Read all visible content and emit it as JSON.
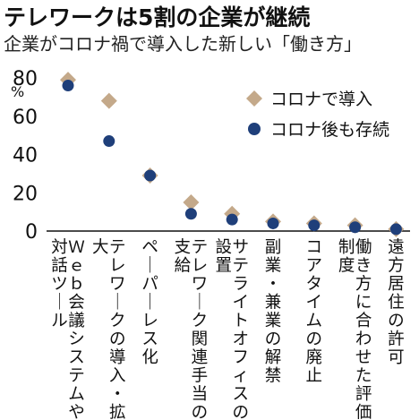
{
  "chart_data": {
    "type": "scatter",
    "title": "テレワークは5割の企業が継続",
    "subtitle": "企業がコロナ禍で導入した新しい「働き方」",
    "ylabel": "%",
    "ylim": [
      0,
      80
    ],
    "yticks": [
      0,
      20,
      40,
      60,
      80
    ],
    "grid": false,
    "legend_position": "top-right",
    "categories": [
      "Ｗｅｂ会議システムや対話ツール",
      "テレワークの導入・拡大",
      "ペーパーレス化",
      "テレワーク関連手当の支給",
      "サテライトオフィスの設置",
      "副業・兼業の解禁",
      "コアタイムの廃止",
      "働き方に合わせた評価制度",
      "遠方居住の許可"
    ],
    "series": [
      {
        "name": "コロナで導入",
        "marker": "diamond",
        "color": "#c4a98a",
        "values": [
          79,
          68,
          29,
          15,
          9,
          5,
          4,
          3,
          1
        ]
      },
      {
        "name": "コロナ後も存続",
        "marker": "circle",
        "color": "#1f3f7a",
        "values": [
          76,
          47,
          29,
          9,
          6,
          4,
          3,
          2,
          1
        ]
      }
    ]
  }
}
